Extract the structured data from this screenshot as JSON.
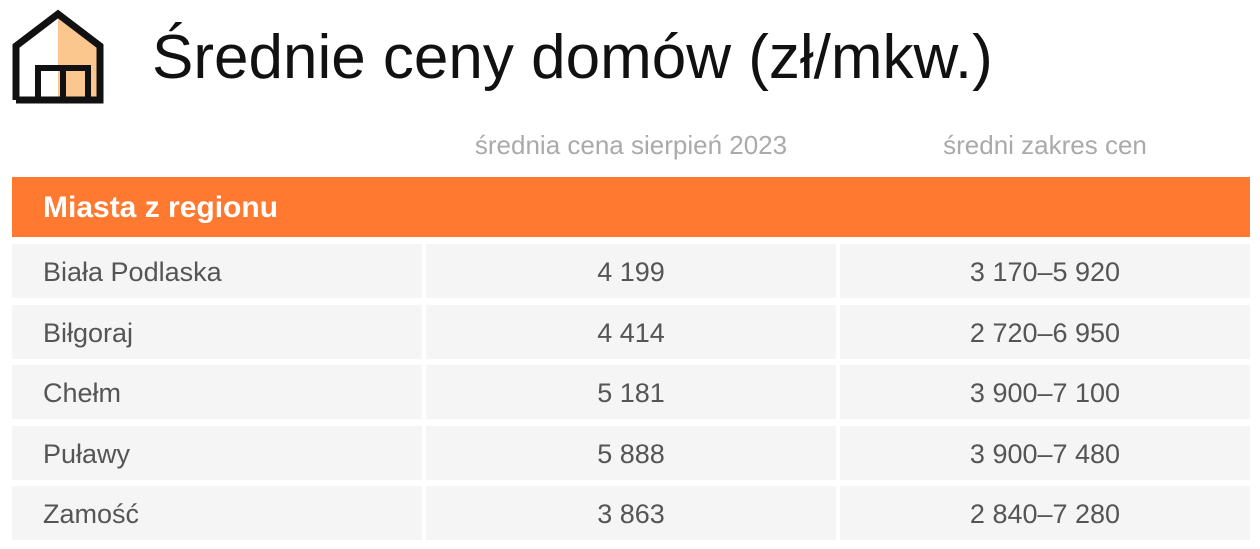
{
  "header": {
    "title": "Średnie ceny domów (zł/mkw.)"
  },
  "table": {
    "columns": [
      "średnia cena sierpień 2023",
      "średni zakres cen"
    ],
    "section": "Miasta z regionu",
    "rows": [
      [
        "Biała Podlaska",
        "4 199",
        "3 170–5 920"
      ],
      [
        "Biłgoraj",
        "4 414",
        "2 720–6 950"
      ],
      [
        "Chełm",
        "5 181",
        "3 900–7 100"
      ],
      [
        "Puławy",
        "5 888",
        "3 900–7 480"
      ],
      [
        "Zamość",
        "3 863",
        "2 840–7 280"
      ]
    ]
  }
}
